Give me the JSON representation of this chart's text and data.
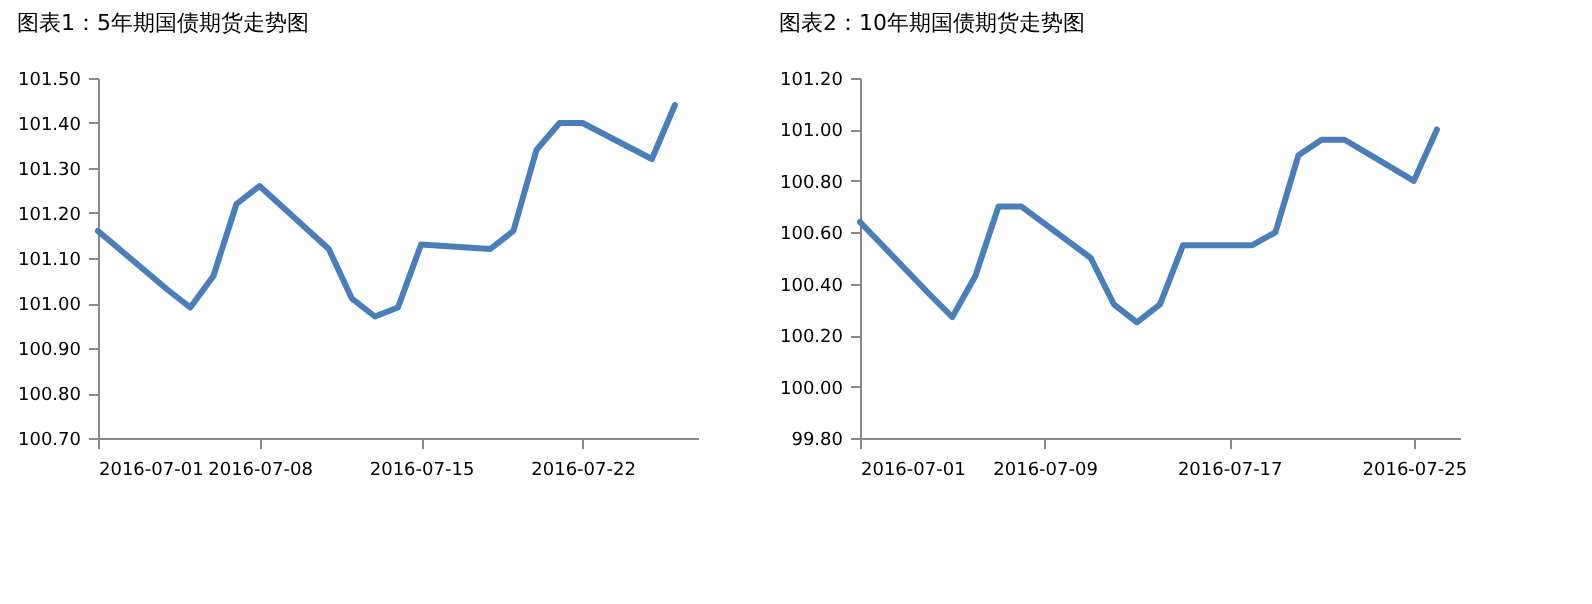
{
  "chart_data": [
    {
      "type": "line",
      "title": "图表1：5年期国债期货走势图",
      "x": [
        "2016-07-01",
        "2016-07-04",
        "2016-07-05",
        "2016-07-06",
        "2016-07-07",
        "2016-07-08",
        "2016-07-11",
        "2016-07-12",
        "2016-07-13",
        "2016-07-14",
        "2016-07-15",
        "2016-07-18",
        "2016-07-19",
        "2016-07-20",
        "2016-07-21",
        "2016-07-22",
        "2016-07-25",
        "2016-07-26"
      ],
      "series": [
        {
          "color": "#4a7ebb",
          "values": [
            101.16,
            101.03,
            100.99,
            101.06,
            101.22,
            101.26,
            101.12,
            101.01,
            100.97,
            100.99,
            101.13,
            101.12,
            101.16,
            101.34,
            101.4,
            101.4,
            101.32,
            101.44
          ]
        }
      ],
      "xlim": [
        "2016-07-01",
        "2016-07-27"
      ],
      "xticks": [
        "2016-07-01",
        "2016-07-08",
        "2016-07-15",
        "2016-07-22"
      ],
      "ylim": [
        100.7,
        101.5
      ],
      "yticks": [
        {
          "value": 100.7,
          "label": "100.70"
        },
        {
          "value": 100.8,
          "label": "100.80"
        },
        {
          "value": 100.9,
          "label": "100.90"
        },
        {
          "value": 101.0,
          "label": "101.00"
        },
        {
          "value": 101.1,
          "label": "101.10"
        },
        {
          "value": 101.2,
          "label": "101.20"
        },
        {
          "value": 101.3,
          "label": "101.30"
        },
        {
          "value": 101.4,
          "label": "101.40"
        },
        {
          "value": 101.5,
          "label": "101.50"
        }
      ],
      "grid": false
    },
    {
      "type": "line",
      "title": "图表2：10年期国债期货走势图",
      "x": [
        "2016-07-01",
        "2016-07-04",
        "2016-07-05",
        "2016-07-06",
        "2016-07-07",
        "2016-07-08",
        "2016-07-11",
        "2016-07-12",
        "2016-07-13",
        "2016-07-14",
        "2016-07-15",
        "2016-07-18",
        "2016-07-19",
        "2016-07-20",
        "2016-07-21",
        "2016-07-22",
        "2016-07-25",
        "2016-07-26"
      ],
      "series": [
        {
          "color": "#4a7ebb",
          "values": [
            100.64,
            100.36,
            100.27,
            100.43,
            100.7,
            100.7,
            100.5,
            100.32,
            100.25,
            100.32,
            100.55,
            100.55,
            100.6,
            100.9,
            100.96,
            100.96,
            100.8,
            101.0
          ]
        }
      ],
      "xlim": [
        "2016-07-01",
        "2016-07-27"
      ],
      "xticks": [
        "2016-07-01",
        "2016-07-09",
        "2016-07-17",
        "2016-07-25"
      ],
      "ylim": [
        99.8,
        101.2
      ],
      "yticks": [
        {
          "value": 99.8,
          "label": "99.80"
        },
        {
          "value": 100.0,
          "label": "100.00"
        },
        {
          "value": 100.2,
          "label": "100.20"
        },
        {
          "value": 100.4,
          "label": "100.40"
        },
        {
          "value": 100.6,
          "label": "100.60"
        },
        {
          "value": 100.8,
          "label": "100.80"
        },
        {
          "value": 101.0,
          "label": "101.00"
        },
        {
          "value": 101.2,
          "label": "101.20"
        }
      ],
      "grid": false
    }
  ]
}
